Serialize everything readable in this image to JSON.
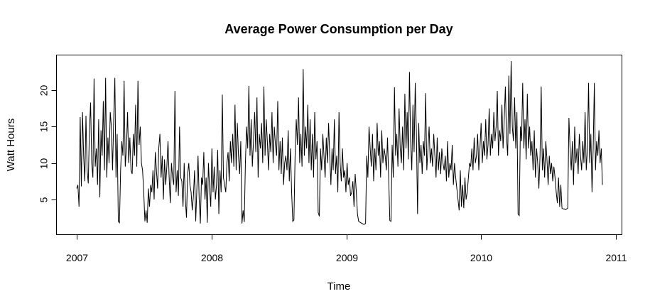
{
  "chart_data": {
    "type": "line",
    "title": "Average Power Consumption per Day",
    "xlabel": "Time",
    "ylabel": "Watt Hours",
    "xlim": [
      2007,
      2011
    ],
    "ylim": [
      1.0,
      24.0
    ],
    "xticks": [
      2007,
      2008,
      2009,
      2010,
      2011
    ],
    "xtick_labels": [
      "2007",
      "2008",
      "2009",
      "2010",
      "2011"
    ],
    "yticks": [
      5,
      10,
      15,
      20
    ],
    "ytick_labels": [
      "5",
      "10",
      "15",
      "20"
    ],
    "grid": false,
    "legend": "none",
    "series": [
      {
        "x_start": 2007.0,
        "x_end": 2010.9,
        "y": [
          6.5,
          7.0,
          4.0,
          16.3,
          6.8,
          17.0,
          11.0,
          7.5,
          16.5,
          9.0,
          7.2,
          14.5,
          18.3,
          10.0,
          8.0,
          21.6,
          9.5,
          12.0,
          7.0,
          16.0,
          5.3,
          14.5,
          11.0,
          18.5,
          9.0,
          21.7,
          8.0,
          13.5,
          10.0,
          17.0,
          15.0,
          9.0,
          16.0,
          21.7,
          8.0,
          14.0,
          2.0,
          1.8,
          9.0,
          13.0,
          11.0,
          21.3,
          9.5,
          12.0,
          17.0,
          10.0,
          13.5,
          9.0,
          8.5,
          14.0,
          11.0,
          18.0,
          9.5,
          21.3,
          12.5,
          15.0,
          10.0,
          9.0,
          6.0,
          2.0,
          3.5,
          1.8,
          6.5,
          4.0,
          7.0,
          6.0,
          9.0,
          5.0,
          11.5,
          9.0,
          6.5,
          12.0,
          14.0,
          8.0,
          11.0,
          5.0,
          10.5,
          7.0,
          9.5,
          13.0,
          8.0,
          4.5,
          10.0,
          8.0,
          7.0,
          19.9,
          6.0,
          9.0,
          5.5,
          15.0,
          8.0,
          7.5,
          4.0,
          10.0,
          5.0,
          2.5,
          8.5,
          10.0,
          7.0,
          6.0,
          3.5,
          5.5,
          9.0,
          2.0,
          6.5,
          11.0,
          5.0,
          1.7,
          8.0,
          7.0,
          11.5,
          5.0,
          8.0,
          1.8,
          10.0,
          6.5,
          4.0,
          12.0,
          6.0,
          9.5,
          5.0,
          7.0,
          11.8,
          3.0,
          9.0,
          6.0,
          19.4,
          8.0,
          7.0,
          6.0,
          10.0,
          11.5,
          7.5,
          13.0,
          10.0,
          14.0,
          9.5,
          18.0,
          9.0,
          15.5,
          11.0,
          8.5,
          13.0,
          1.7,
          3.5,
          1.9,
          10.0,
          15.0,
          12.0,
          20.6,
          11.0,
          16.0,
          9.5,
          13.0,
          17.0,
          11.5,
          19.0,
          8.0,
          14.0,
          12.0,
          15.5,
          10.0,
          20.5,
          11.0,
          16.0,
          13.0,
          9.0,
          14.0,
          11.5,
          17.0,
          10.0,
          15.0,
          12.5,
          11.0,
          18.5,
          9.0,
          13.0,
          8.5,
          13.5,
          7.0,
          10.0,
          11.0,
          9.0,
          14.5,
          7.5,
          12.0,
          6.0,
          2.0,
          2.2,
          11.0,
          16.0,
          12.5,
          19.0,
          10.0,
          14.0,
          9.5,
          22.9,
          11.0,
          15.0,
          12.0,
          18.0,
          10.0,
          16.0,
          9.0,
          14.0,
          8.0,
          17.0,
          10.5,
          13.0,
          3.2,
          2.7,
          12.0,
          9.0,
          14.0,
          11.0,
          8.0,
          13.5,
          10.0,
          15.5,
          11.0,
          7.0,
          12.0,
          9.0,
          16.0,
          8.5,
          11.0,
          6.0,
          17.0,
          10.0,
          7.5,
          12.0,
          8.0,
          9.0,
          6.0,
          10.0,
          7.0,
          8.0,
          5.5,
          6.0,
          7.5,
          4.0,
          8.5,
          6.0,
          3.0,
          2.0,
          1.9,
          1.8,
          1.7,
          1.6,
          1.6,
          1.7,
          11.0,
          8.0,
          15.0,
          12.0,
          9.5,
          14.0,
          7.5,
          12.0,
          9.0,
          15.5,
          11.0,
          13.0,
          8.0,
          14.5,
          10.0,
          12.0,
          11.0,
          9.0,
          13.5,
          8.0,
          2.1,
          2.0,
          12.5,
          8.0,
          20.4,
          11.0,
          14.0,
          9.5,
          17.5,
          12.0,
          10.0,
          15.0,
          9.0,
          19.5,
          12.0,
          17.0,
          10.5,
          22.5,
          13.0,
          9.0,
          18.0,
          11.5,
          21.0,
          14.0,
          3.0,
          15.5,
          10.0,
          12.5,
          8.5,
          13.0,
          11.0,
          19.6,
          9.0,
          12.0,
          15.0,
          10.0,
          12.0,
          9.5,
          14.0,
          11.0,
          8.0,
          13.5,
          9.0,
          11.5,
          8.5,
          12.0,
          10.0,
          9.0,
          11.0,
          7.5,
          13.0,
          8.0,
          10.0,
          9.0,
          12.5,
          7.0,
          10.0,
          8.0,
          6.5,
          5.0,
          3.5,
          9.0,
          4.0,
          7.0,
          3.8,
          8.0,
          5.0,
          6.0,
          8.0,
          10.0,
          9.5,
          12.0,
          9.0,
          13.5,
          10.0,
          11.0,
          14.0,
          9.0,
          12.0,
          15.5,
          10.0,
          13.0,
          11.0,
          16.0,
          10.5,
          12.5,
          17.5,
          11.0,
          14.0,
          12.0,
          17.0,
          13.0,
          15.0,
          19.9,
          11.0,
          14.5,
          13.0,
          18.0,
          12.0,
          16.0,
          20.5,
          13.5,
          11.0,
          22.0,
          14.0,
          24.0,
          15.0,
          13.0,
          19.0,
          12.0,
          17.0,
          3.0,
          2.8,
          15.0,
          13.0,
          21.0,
          12.0,
          16.0,
          10.5,
          19.5,
          12.0,
          15.0,
          11.0,
          13.0,
          9.0,
          14.5,
          8.0,
          12.0,
          10.0,
          6.5,
          11.0,
          20.5,
          9.0,
          12.0,
          8.0,
          13.0,
          10.5,
          7.0,
          11.0,
          8.5,
          10.0,
          7.5,
          9.5,
          8.0,
          6.0,
          4.5,
          8.0,
          4.0,
          7.0,
          3.8,
          3.7,
          3.7,
          3.6,
          3.7,
          3.8,
          16.2,
          12.0,
          9.0,
          13.0,
          7.0,
          15.0,
          10.0,
          12.0,
          8.5,
          14.0,
          11.0,
          9.0,
          13.0,
          10.0,
          17.0,
          9.0,
          12.0,
          21.0,
          10.0,
          14.0,
          6.0,
          12.0,
          21.0,
          9.0,
          13.0,
          11.0,
          14.5,
          10.0,
          12.0,
          7.0
        ]
      }
    ]
  }
}
